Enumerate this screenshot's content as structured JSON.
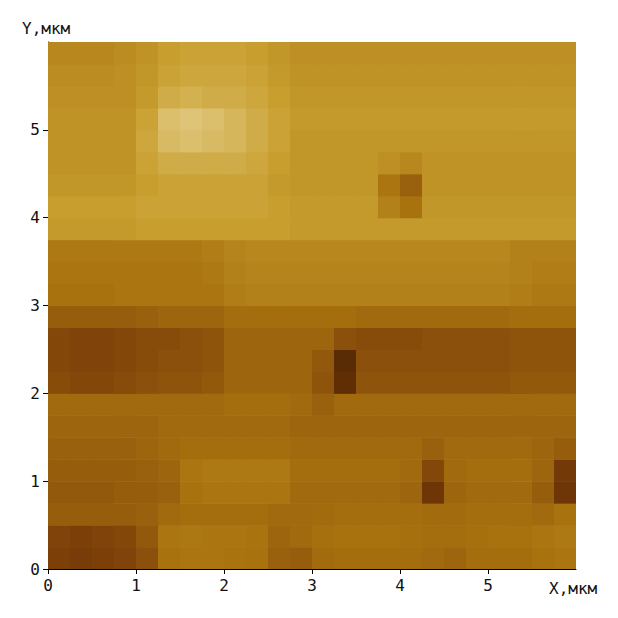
{
  "chart_data": {
    "type": "heatmap",
    "xlabel": "X,мкм",
    "ylabel": "Y,мкм",
    "xlim": [
      0,
      6
    ],
    "ylim": [
      0,
      6
    ],
    "xticks": [
      0,
      1,
      2,
      3,
      4,
      5
    ],
    "yticks": [
      0,
      1,
      2,
      3,
      4,
      5
    ],
    "grid": false,
    "x": [
      0.125,
      0.375,
      0.625,
      0.875,
      1.125,
      1.375,
      1.625,
      1.875,
      2.125,
      2.375,
      2.625,
      2.875,
      3.125,
      3.375,
      3.625,
      3.875,
      4.125,
      4.375,
      4.625,
      4.875,
      5.125,
      5.375,
      5.625,
      5.875
    ],
    "y": [
      0.125,
      0.375,
      0.625,
      0.875,
      1.125,
      1.375,
      1.625,
      1.875,
      2.125,
      2.375,
      2.625,
      2.875,
      3.125,
      3.375,
      3.625,
      3.875,
      4.125,
      4.375,
      4.625,
      4.875,
      5.125,
      5.375,
      5.625,
      5.875
    ],
    "zlim": [
      0,
      100
    ],
    "colors": [
      "#3d1c02",
      "#7a3d08",
      "#a8720f",
      "#c9a030",
      "#ecdca6"
    ],
    "z": [
      [
        26,
        24,
        26,
        28,
        34,
        50,
        52,
        52,
        51,
        50,
        42,
        40,
        47,
        48,
        48,
        48,
        48,
        46,
        44,
        48,
        48,
        48,
        50,
        52
      ],
      [
        28,
        26,
        28,
        30,
        38,
        52,
        53,
        52,
        52,
        51,
        44,
        46,
        49,
        50,
        50,
        50,
        49,
        48,
        48,
        49,
        50,
        50,
        52,
        54
      ],
      [
        40,
        40,
        40,
        40,
        42,
        46,
        48,
        48,
        48,
        48,
        46,
        46,
        47,
        48,
        48,
        48,
        48,
        47,
        47,
        48,
        48,
        48,
        46,
        50
      ],
      [
        38,
        38,
        38,
        40,
        40,
        42,
        50,
        52,
        52,
        52,
        52,
        46,
        46,
        46,
        46,
        46,
        44,
        20,
        44,
        46,
        46,
        46,
        40,
        20
      ],
      [
        40,
        40,
        40,
        40,
        42,
        44,
        52,
        54,
        54,
        54,
        54,
        48,
        48,
        48,
        48,
        48,
        46,
        30,
        46,
        48,
        48,
        48,
        44,
        22
      ],
      [
        42,
        42,
        42,
        42,
        44,
        46,
        48,
        48,
        48,
        48,
        48,
        46,
        46,
        46,
        46,
        46,
        46,
        42,
        46,
        46,
        46,
        46,
        44,
        40
      ],
      [
        44,
        44,
        44,
        44,
        44,
        46,
        46,
        46,
        46,
        46,
        46,
        44,
        44,
        44,
        44,
        44,
        44,
        44,
        44,
        44,
        44,
        44,
        44,
        44
      ],
      [
        46,
        46,
        46,
        46,
        46,
        46,
        46,
        46,
        48,
        48,
        48,
        46,
        42,
        46,
        46,
        46,
        46,
        46,
        46,
        46,
        46,
        46,
        46,
        46
      ],
      [
        32,
        30,
        30,
        32,
        34,
        36,
        36,
        38,
        44,
        44,
        44,
        44,
        36,
        14,
        36,
        36,
        36,
        36,
        36,
        36,
        36,
        38,
        38,
        38
      ],
      [
        30,
        28,
        28,
        30,
        32,
        34,
        34,
        36,
        44,
        44,
        44,
        44,
        38,
        12,
        34,
        34,
        34,
        34,
        34,
        34,
        34,
        36,
        36,
        36
      ],
      [
        30,
        28,
        28,
        30,
        32,
        32,
        34,
        36,
        44,
        44,
        44,
        44,
        44,
        34,
        32,
        32,
        32,
        34,
        34,
        34,
        34,
        36,
        36,
        36
      ],
      [
        40,
        40,
        40,
        40,
        42,
        44,
        44,
        44,
        48,
        48,
        48,
        48,
        48,
        48,
        46,
        46,
        46,
        46,
        46,
        46,
        46,
        48,
        48,
        48
      ],
      [
        50,
        50,
        50,
        52,
        52,
        52,
        52,
        52,
        56,
        58,
        58,
        58,
        58,
        58,
        58,
        58,
        58,
        58,
        58,
        58,
        58,
        56,
        54,
        54
      ],
      [
        52,
        52,
        52,
        52,
        52,
        52,
        52,
        54,
        58,
        60,
        60,
        60,
        60,
        60,
        60,
        60,
        60,
        60,
        60,
        60,
        60,
        58,
        56,
        56
      ],
      [
        54,
        54,
        54,
        54,
        54,
        54,
        54,
        56,
        60,
        62,
        62,
        62,
        62,
        62,
        62,
        62,
        62,
        62,
        62,
        62,
        62,
        58,
        58,
        58
      ],
      [
        72,
        72,
        72,
        72,
        74,
        74,
        74,
        74,
        74,
        74,
        74,
        72,
        72,
        72,
        72,
        72,
        72,
        72,
        72,
        72,
        72,
        72,
        72,
        72
      ],
      [
        74,
        74,
        74,
        74,
        76,
        76,
        76,
        76,
        76,
        76,
        74,
        72,
        72,
        72,
        72,
        58,
        50,
        70,
        70,
        70,
        70,
        70,
        70,
        70
      ],
      [
        70,
        70,
        70,
        70,
        74,
        76,
        76,
        76,
        76,
        76,
        72,
        70,
        70,
        70,
        70,
        52,
        42,
        68,
        68,
        68,
        68,
        68,
        68,
        68
      ],
      [
        68,
        68,
        68,
        68,
        76,
        80,
        80,
        80,
        80,
        78,
        74,
        70,
        70,
        70,
        70,
        66,
        62,
        68,
        68,
        68,
        68,
        68,
        68,
        68
      ],
      [
        68,
        68,
        68,
        68,
        78,
        86,
        88,
        86,
        84,
        80,
        76,
        70,
        70,
        70,
        70,
        70,
        70,
        70,
        70,
        70,
        70,
        70,
        70,
        70
      ],
      [
        68,
        68,
        68,
        68,
        76,
        88,
        90,
        88,
        84,
        80,
        76,
        72,
        72,
        72,
        72,
        72,
        72,
        72,
        72,
        72,
        72,
        72,
        72,
        72
      ],
      [
        66,
        66,
        66,
        66,
        72,
        80,
        82,
        80,
        80,
        78,
        74,
        70,
        70,
        70,
        70,
        70,
        70,
        70,
        70,
        70,
        70,
        70,
        70,
        70
      ],
      [
        64,
        64,
        64,
        66,
        70,
        76,
        78,
        78,
        78,
        76,
        72,
        68,
        68,
        68,
        68,
        68,
        68,
        68,
        68,
        68,
        68,
        68,
        68,
        68
      ],
      [
        62,
        62,
        62,
        64,
        68,
        74,
        76,
        76,
        76,
        74,
        70,
        66,
        66,
        66,
        66,
        66,
        66,
        66,
        66,
        66,
        66,
        66,
        66,
        66
      ]
    ]
  }
}
